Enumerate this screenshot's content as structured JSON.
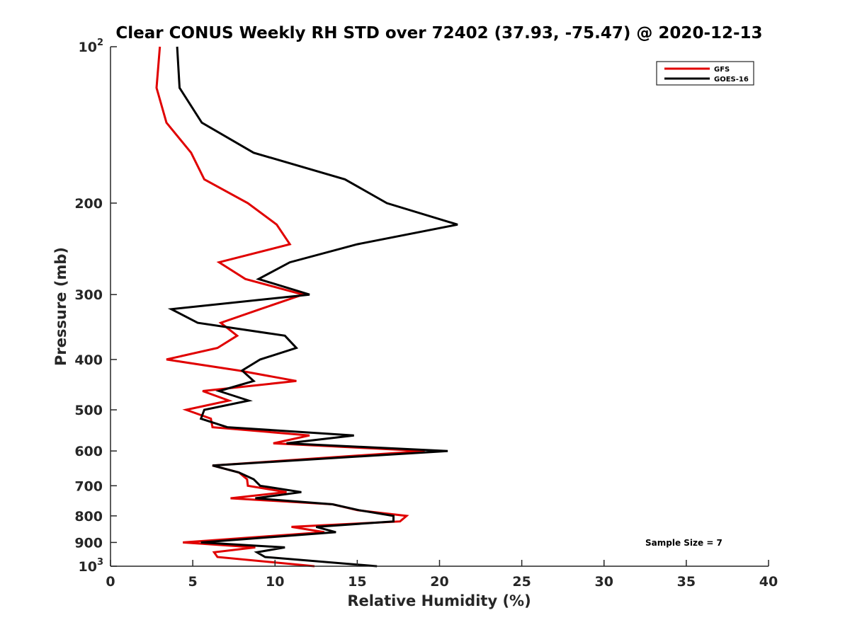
{
  "chart_data": {
    "type": "line",
    "title": "Clear CONUS Weekly RH STD over 72402 (37.93, -75.47) @ 2020-12-13",
    "xlabel": "Relative Humidity (%)",
    "ylabel": "Pressure (mb)",
    "xlim": [
      0,
      40
    ],
    "ylim": [
      1000,
      100
    ],
    "yscale": "log",
    "y_inverted": true,
    "grid": false,
    "x_ticks": [
      0,
      5,
      10,
      15,
      20,
      25,
      30,
      35,
      40
    ],
    "x_tick_labels": [
      "0",
      "5",
      "10",
      "15",
      "20",
      "25",
      "30",
      "35",
      "40"
    ],
    "y_ticks": [
      100,
      200,
      300,
      400,
      500,
      600,
      700,
      800,
      900,
      1000
    ],
    "y_tick_labels": [
      {
        "base": "10",
        "exp": "2"
      },
      {
        "base": "200",
        "exp": ""
      },
      {
        "base": "300",
        "exp": ""
      },
      {
        "base": "400",
        "exp": ""
      },
      {
        "base": "500",
        "exp": ""
      },
      {
        "base": "600",
        "exp": ""
      },
      {
        "base": "700",
        "exp": ""
      },
      {
        "base": "800",
        "exp": ""
      },
      {
        "base": "900",
        "exp": ""
      },
      {
        "base": "10",
        "exp": "3"
      }
    ],
    "legend_position": "top-right",
    "series": [
      {
        "name": "GFS",
        "color": "#e00000",
        "pressure": [
          100,
          120,
          140,
          160,
          180,
          200,
          220,
          240,
          260,
          280,
          300,
          320,
          340,
          360,
          380,
          400,
          420,
          440,
          460,
          480,
          500,
          520,
          540,
          560,
          580,
          600,
          640,
          660,
          680,
          700,
          720,
          740,
          760,
          780,
          800,
          820,
          840,
          860,
          900,
          920,
          940,
          960,
          1000
        ],
        "values": [
          3.0,
          2.8,
          3.4,
          4.9,
          5.7,
          8.35,
          10.1,
          10.9,
          6.6,
          8.2,
          11.7,
          9.1,
          6.7,
          7.7,
          6.5,
          3.4,
          7.8,
          11.3,
          5.6,
          7.2,
          4.6,
          6.1,
          6.2,
          12.1,
          9.9,
          19.1,
          6.2,
          7.8,
          8.3,
          8.35,
          10.7,
          7.3,
          13.5,
          15.0,
          18.0,
          17.6,
          11.0,
          13.0,
          4.4,
          8.8,
          6.3,
          6.5,
          12.4
        ]
      },
      {
        "name": "GOES-16",
        "color": "#000000",
        "pressure": [
          100,
          120,
          140,
          160,
          180,
          200,
          220,
          240,
          260,
          280,
          300,
          320,
          340,
          360,
          380,
          400,
          420,
          440,
          460,
          480,
          500,
          520,
          540,
          560,
          580,
          600,
          640,
          660,
          680,
          700,
          720,
          740,
          760,
          780,
          800,
          820,
          840,
          860,
          900,
          920,
          940,
          960,
          1000
        ],
        "values": [
          4.05,
          4.2,
          5.55,
          8.7,
          14.25,
          16.8,
          21.1,
          15.0,
          10.9,
          9.0,
          12.1,
          3.7,
          5.3,
          10.6,
          11.3,
          9.1,
          8.0,
          8.7,
          6.6,
          8.4,
          5.7,
          5.5,
          7.1,
          14.8,
          10.7,
          20.5,
          6.2,
          7.8,
          8.7,
          9.1,
          11.6,
          8.8,
          13.5,
          15.1,
          17.2,
          17.2,
          12.5,
          13.7,
          5.5,
          10.6,
          8.9,
          9.4,
          16.2
        ]
      }
    ],
    "annotations": [
      {
        "text": "Sample Size = 7",
        "position": "bottom-right"
      }
    ]
  }
}
